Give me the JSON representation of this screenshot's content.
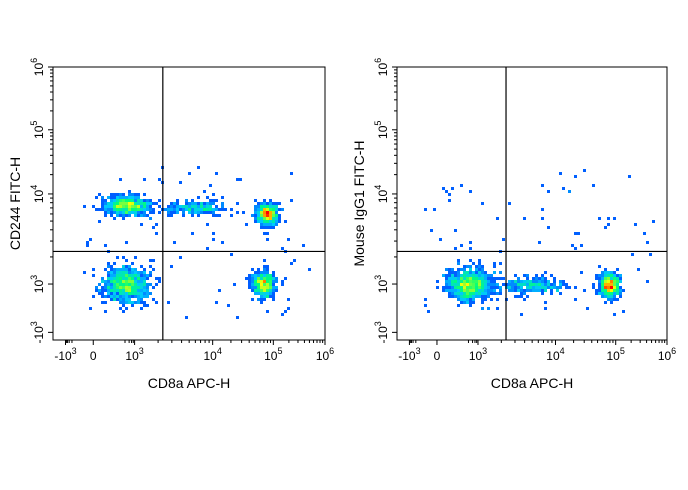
{
  "chart_data": [
    {
      "type": "scatter",
      "xlabel": "CD8a APC-H",
      "ylabel": "CD244 FITC-H",
      "xaxis": {
        "scale": "logicle",
        "ticks": [
          {
            "value": -1000,
            "base": "-10",
            "exp": "3"
          },
          {
            "value": 0,
            "base": "0",
            "exp": ""
          },
          {
            "value": 1000,
            "base": "10",
            "exp": "3"
          },
          {
            "value": 10000,
            "base": "10",
            "exp": "4"
          },
          {
            "value": 100000,
            "base": "10",
            "exp": "5"
          },
          {
            "value": 1000000,
            "base": "10",
            "exp": "6"
          }
        ]
      },
      "yaxis": {
        "scale": "logicle",
        "ticks": [
          {
            "value": -1000,
            "base": "-10",
            "exp": "3"
          },
          {
            "value": 1000,
            "base": "10",
            "exp": "3"
          },
          {
            "value": 10000,
            "base": "10",
            "exp": "4"
          },
          {
            "value": 100000,
            "base": "10",
            "exp": "5"
          },
          {
            "value": 1000000,
            "base": "10",
            "exp": "6"
          }
        ]
      },
      "gate": {
        "x": 2300,
        "y": 2300
      },
      "populations": [
        {
          "x": 250,
          "y": 750,
          "spread_x": 0.22,
          "spread_y": 0.18,
          "density": 1.0
        },
        {
          "x": 300,
          "y": 7500,
          "spread_x": 0.22,
          "spread_y": 0.1,
          "density": 0.7
        },
        {
          "x": 80000,
          "y": 6000,
          "spread_x": 0.1,
          "spread_y": 0.1,
          "density": 0.6
        },
        {
          "x": 70000,
          "y": 950,
          "spread_x": 0.12,
          "spread_y": 0.12,
          "density": 0.55
        },
        {
          "x": 6000,
          "y": 7000,
          "spread_x": 0.3,
          "spread_y": 0.06,
          "density": 0.25
        }
      ]
    },
    {
      "type": "scatter",
      "xlabel": "CD8a APC-H",
      "ylabel": "Mouse IgG1 FITC-H",
      "xaxis": {
        "scale": "logicle",
        "ticks": [
          {
            "value": -1000,
            "base": "-10",
            "exp": "3"
          },
          {
            "value": 0,
            "base": "0",
            "exp": ""
          },
          {
            "value": 1000,
            "base": "10",
            "exp": "3"
          },
          {
            "value": 10000,
            "base": "10",
            "exp": "4"
          },
          {
            "value": 100000,
            "base": "10",
            "exp": "5"
          },
          {
            "value": 1000000,
            "base": "10",
            "exp": "6"
          }
        ]
      },
      "yaxis": {
        "scale": "logicle",
        "ticks": [
          {
            "value": -1000,
            "base": "-10",
            "exp": "3"
          },
          {
            "value": 1000,
            "base": "10",
            "exp": "3"
          },
          {
            "value": 10000,
            "base": "10",
            "exp": "4"
          },
          {
            "value": 100000,
            "base": "10",
            "exp": "5"
          },
          {
            "value": 1000000,
            "base": "10",
            "exp": "6"
          }
        ]
      },
      "gate": {
        "x": 2300,
        "y": 2300
      },
      "populations": [
        {
          "x": 250,
          "y": 750,
          "spread_x": 0.22,
          "spread_y": 0.16,
          "density": 1.0
        },
        {
          "x": 80000,
          "y": 750,
          "spread_x": 0.1,
          "spread_y": 0.12,
          "density": 0.65
        },
        {
          "x": 5000,
          "y": 750,
          "spread_x": 0.35,
          "spread_y": 0.08,
          "density": 0.3
        }
      ]
    }
  ],
  "colors": {
    "density_low": "#0000ff",
    "density_mid": "#00ff80",
    "density_high": "#ff0000",
    "axis": "#000000",
    "gate": "#000000"
  }
}
